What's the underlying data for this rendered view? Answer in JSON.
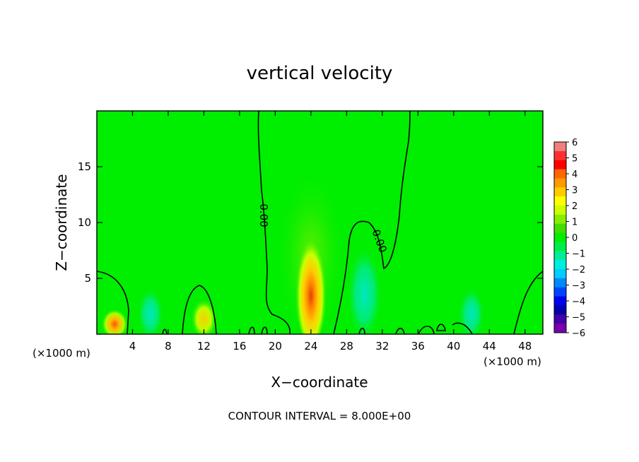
{
  "chart_data": {
    "type": "heatmap",
    "title": "vertical velocity",
    "xlabel": "X−coordinate",
    "ylabel": "Z−coordinate",
    "x_unit_left": "(×1000 m)",
    "x_unit_right": "(×1000 m)",
    "xlim": [
      0,
      50
    ],
    "ylim": [
      0,
      20
    ],
    "x_ticks": [
      4,
      8,
      12,
      16,
      20,
      24,
      28,
      32,
      36,
      40,
      44,
      48
    ],
    "y_ticks": [
      5,
      10,
      15
    ],
    "contour_label": "0.00",
    "footer": "CONTOUR INTERVAL = 8.000E+00",
    "colorbar": {
      "labels": [
        "6",
        "5",
        "4",
        "3",
        "2",
        "1",
        "0",
        "−1",
        "−2",
        "−3",
        "−4",
        "−5",
        "−6"
      ],
      "colors": [
        "#f08080",
        "#ff3030",
        "#ff0000",
        "#ff6600",
        "#ff9900",
        "#ffcc00",
        "#ffff00",
        "#ccff00",
        "#88ee00",
        "#44dd00",
        "#00ee00",
        "#00ee44",
        "#00ee99",
        "#00eedd",
        "#00ccff",
        "#0088ff",
        "#0044ff",
        "#0000ee",
        "#0000aa",
        "#4400aa",
        "#7700aa"
      ]
    },
    "features": [
      {
        "name": "main-updraft",
        "x": 24,
        "z_bottom": 0,
        "z_top": 10,
        "peak": 4.5
      },
      {
        "name": "updraft-left",
        "x": 2,
        "z_bottom": 0,
        "z_top": 2,
        "peak": 2.5
      },
      {
        "name": "updraft-12km",
        "x": 12,
        "z_bottom": 0,
        "z_top": 3,
        "peak": 1.5
      },
      {
        "name": "downdraft-6km",
        "x": 6,
        "z_bottom": 0,
        "z_top": 4,
        "peak": -1.5
      },
      {
        "name": "downdraft-30km",
        "x": 30,
        "z_bottom": 0,
        "z_top": 8,
        "peak": -0.8
      },
      {
        "name": "downdraft-42km",
        "x": 42,
        "z_bottom": 0,
        "z_top": 4,
        "peak": -1.5
      }
    ]
  }
}
